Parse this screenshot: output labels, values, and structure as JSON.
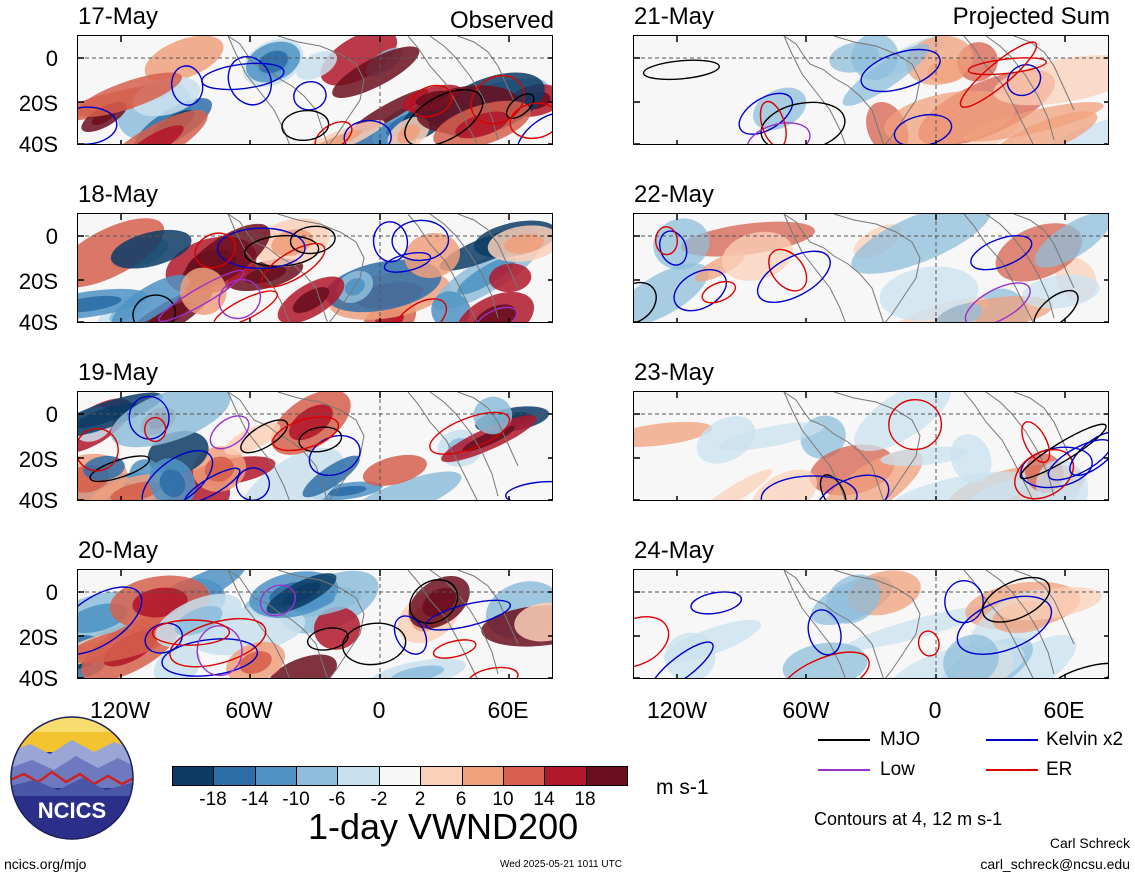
{
  "headers": {
    "observed": "Observed",
    "projected": "Projected Sum"
  },
  "left_panels": [
    {
      "date": "17-May"
    },
    {
      "date": "18-May"
    },
    {
      "date": "19-May"
    },
    {
      "date": "20-May"
    }
  ],
  "right_panels": [
    {
      "date": "21-May"
    },
    {
      "date": "22-May"
    },
    {
      "date": "23-May"
    },
    {
      "date": "24-May"
    }
  ],
  "y_axis_labels": [
    "0",
    "20S",
    "40S"
  ],
  "x_axis_labels": [
    "120W",
    "60W",
    "0",
    "60E"
  ],
  "colorbar": {
    "labels": [
      "-18",
      "-14",
      "-10",
      "-6",
      "-2",
      "2",
      "6",
      "10",
      "14",
      "18"
    ],
    "colors": [
      "#0c3c66",
      "#2e6ea8",
      "#4f93c4",
      "#8ebedb",
      "#c9e1ef",
      "#f7f7f7",
      "#fbd0b9",
      "#f0a07c",
      "#d6604d",
      "#b2182b",
      "#6b0f1f"
    ],
    "units": "m s-1"
  },
  "title": "1-day VWND200",
  "legend": {
    "items": [
      {
        "label": "MJO",
        "color": "#000000"
      },
      {
        "label": "Kelvin x2",
        "color": "#0000cc"
      },
      {
        "label": "Low",
        "color": "#9932cc"
      },
      {
        "label": "ER",
        "color": "#dd0000"
      }
    ],
    "contour_note": "Contours at 4, 12 m s-1"
  },
  "logo_text": "NCICS",
  "footer": {
    "url": "ncics.org/mjo",
    "timestamp": "Wed 2025-05-21 1011 UTC",
    "author": "Carl Schreck",
    "email": "carl_schreck@ncsu.edu"
  }
}
